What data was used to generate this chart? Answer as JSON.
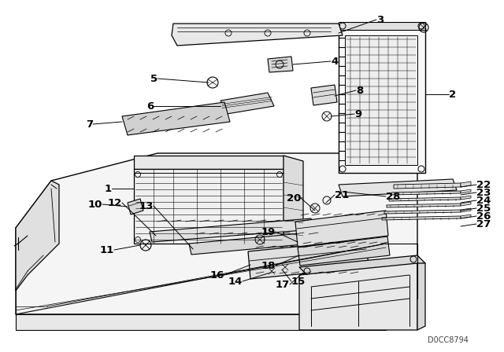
{
  "bg_color": "#ffffff",
  "watermark": "D0CC8794",
  "line_color": "#000000",
  "label_color": "#000000",
  "font_size": 8.5,
  "label_font_size": 10
}
